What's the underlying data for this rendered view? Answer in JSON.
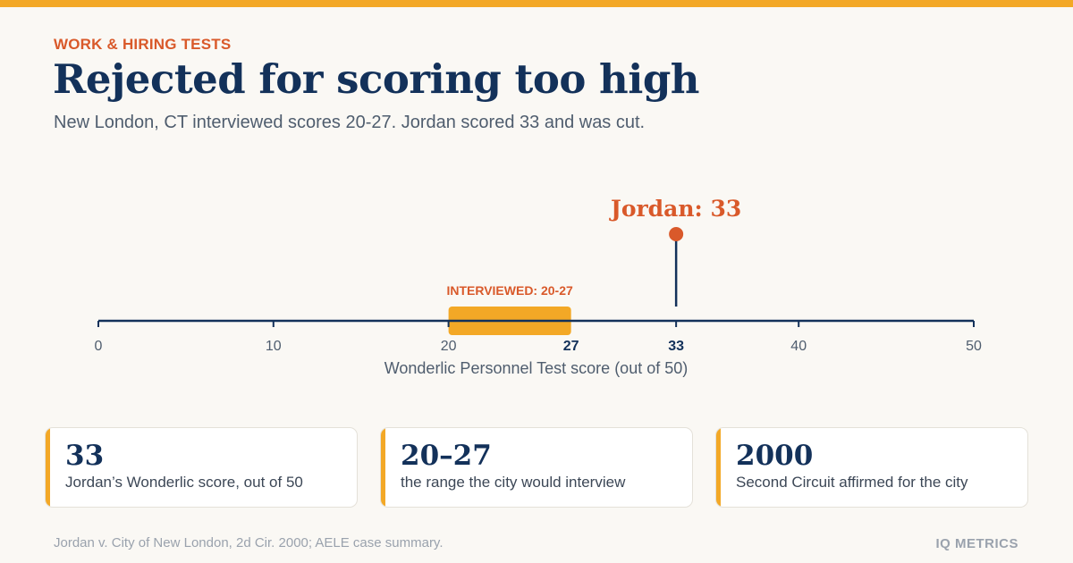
{
  "eyebrow": "WORK & HIRING TESTS",
  "title": "Rejected for scoring too high",
  "subtitle": "New London, CT interviewed scores 20-27. Jordan scored 33 and was cut.",
  "chart_data": {
    "type": "range-marker",
    "xlabel": "Wonderlic Personnel Test score (out of 50)",
    "xlim": [
      0,
      50
    ],
    "ticks": [
      {
        "value": 0,
        "label": "0",
        "bold": false
      },
      {
        "value": 10,
        "label": "10",
        "bold": false
      },
      {
        "value": 20,
        "label": "20",
        "bold": false
      },
      {
        "value": 27,
        "label": "27",
        "bold": true
      },
      {
        "value": 33,
        "label": "33",
        "bold": true
      },
      {
        "value": 40,
        "label": "40",
        "bold": false
      },
      {
        "value": 50,
        "label": "50",
        "bold": false
      }
    ],
    "range": {
      "start": 20,
      "end": 27,
      "label": "INTERVIEWED: 20-27"
    },
    "marker": {
      "value": 33,
      "label": "Jordan: 33"
    }
  },
  "cards": [
    {
      "value": "33",
      "desc": "Jordan’s Wonderlic score, out of 50"
    },
    {
      "value": "20–27",
      "desc": "the range the city would interview"
    },
    {
      "value": "2000",
      "desc": "Second Circuit affirmed for the city"
    }
  ],
  "source": "Jordan v. City of New London, 2d Cir. 2000; AELE case summary.",
  "brand": "IQ METRICS",
  "colors": {
    "accent": "#f3a826",
    "highlight": "#d9592a",
    "navy": "#13315a",
    "muted": "#4f5d6e"
  }
}
